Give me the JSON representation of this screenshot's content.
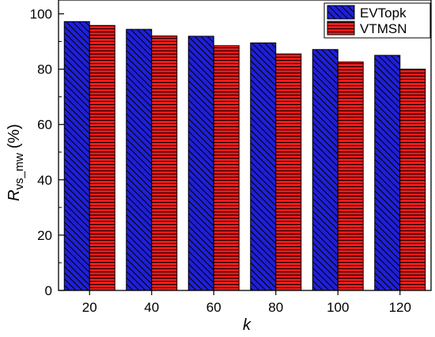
{
  "chart_data": {
    "type": "bar",
    "categories": [
      "20",
      "40",
      "60",
      "80",
      "100",
      "120"
    ],
    "series": [
      {
        "name": "EVTopk",
        "values": [
          97.2,
          94.4,
          91.9,
          89.5,
          87.1,
          85.0
        ],
        "color": "#1f1fd8",
        "pattern": "diagonal-hatch"
      },
      {
        "name": "VTMSN",
        "values": [
          95.8,
          92.0,
          88.5,
          85.5,
          82.6,
          80.0
        ],
        "color": "#f21a1a",
        "pattern": "horizontal-hatch"
      }
    ],
    "xlabel": "k",
    "ylabel": {
      "main": "R",
      "subscript": "vs_mw",
      "suffix": " (%)"
    },
    "ylim": [
      0,
      105
    ],
    "yticks": [
      0,
      20,
      40,
      60,
      80,
      100
    ],
    "grid": false,
    "legend_position": "top-right"
  }
}
